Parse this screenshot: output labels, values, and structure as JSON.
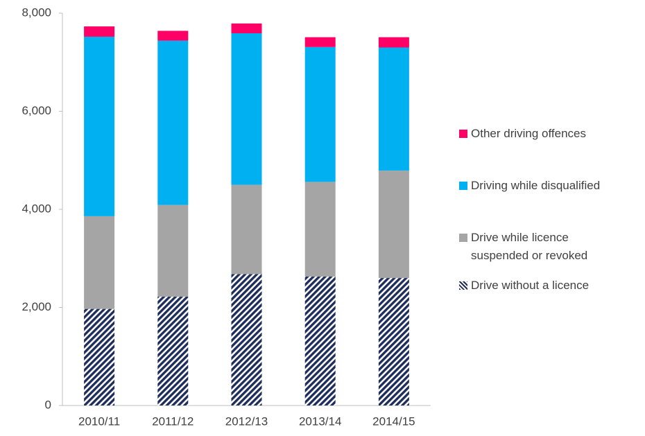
{
  "chart_data": {
    "type": "stacked_bar",
    "categories": [
      "2010/11",
      "2011/12",
      "2012/13",
      "2013/14",
      "2014/15"
    ],
    "series": [
      {
        "name": "Drive without a licence",
        "color": "#1f2d5a",
        "pattern": "diagonal",
        "values": [
          1970,
          2220,
          2680,
          2630,
          2600
        ]
      },
      {
        "name": "Drive while licence suspended or revoked",
        "color": "#a5a5a5",
        "values": [
          1890,
          1870,
          1820,
          1930,
          2190
        ]
      },
      {
        "name": "Driving while disqualified",
        "color": "#00b0f0",
        "values": [
          3660,
          3350,
          3090,
          2750,
          2510
        ]
      },
      {
        "name": "Other driving offences",
        "color": "#ff0066",
        "values": [
          210,
          200,
          200,
          200,
          210
        ]
      }
    ],
    "ylim": [
      0,
      8000
    ],
    "yticks": [
      0,
      {
        "value": 2000,
        "label": "2,000"
      },
      {
        "value": 4000,
        "label": "4,000"
      },
      {
        "value": 6000,
        "label": "6,000"
      },
      {
        "value": 8000,
        "label": "8,000"
      }
    ],
    "grid": false,
    "legend": "right"
  }
}
